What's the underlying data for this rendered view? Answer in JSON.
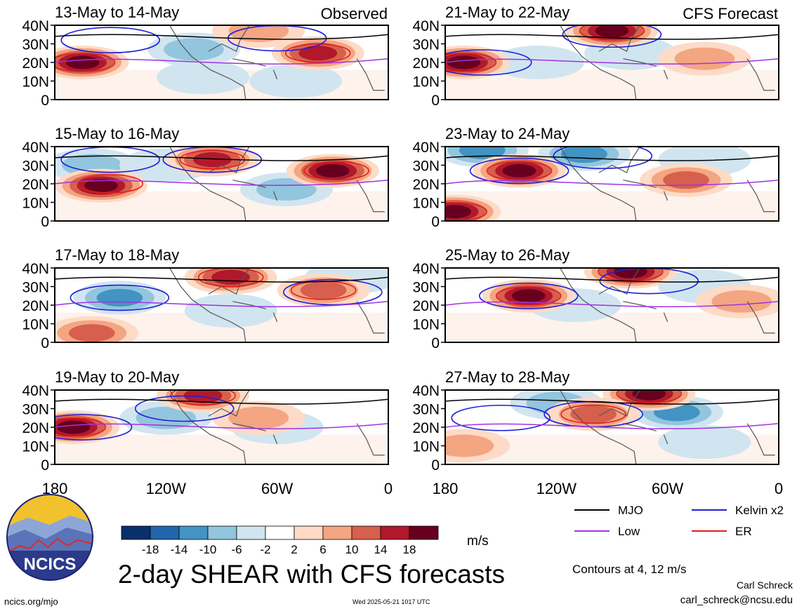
{
  "chart_data": {
    "type": "heatmap",
    "title": "2-day SHEAR with CFS forecasts",
    "units": "m/s",
    "y_ticks": [
      "40N",
      "30N",
      "20N",
      "10N",
      "0"
    ],
    "x_ticks": [
      "180",
      "120W",
      "60W",
      "0"
    ],
    "panels": [
      {
        "period": "13-May to 14-May",
        "tag": "Observed",
        "hot": [
          [
            165,
            20,
            18
          ],
          [
            38,
            25,
            14
          ],
          [
            70,
            37,
            8
          ]
        ],
        "cold": [
          [
            105,
            27,
            -6
          ],
          [
            100,
            12,
            -4
          ],
          [
            50,
            10,
            -4
          ]
        ],
        "red_contours": [
          [
            165,
            20
          ],
          [
            38,
            25
          ]
        ],
        "blue_contours": [
          [
            150,
            32
          ],
          [
            60,
            33
          ]
        ]
      },
      {
        "period": "15-May to 16-May",
        "tag": "",
        "hot": [
          [
            155,
            19,
            18
          ],
          [
            30,
            27,
            20
          ],
          [
            95,
            33,
            14
          ]
        ],
        "cold": [
          [
            160,
            30,
            -6
          ],
          [
            55,
            17,
            -8
          ],
          [
            120,
            30,
            -4
          ]
        ],
        "red_contours": [
          [
            150,
            20
          ],
          [
            28,
            27
          ],
          [
            95,
            33
          ]
        ],
        "blue_contours": [
          [
            95,
            33
          ],
          [
            150,
            33
          ]
        ]
      },
      {
        "period": "17-May to 18-May",
        "tag": "",
        "hot": [
          [
            85,
            35,
            14
          ],
          [
            35,
            28,
            10
          ],
          [
            160,
            5,
            12
          ]
        ],
        "cold": [
          [
            145,
            24,
            -10
          ],
          [
            20,
            35,
            -4
          ],
          [
            85,
            17,
            -4
          ]
        ],
        "red_contours": [
          [
            85,
            35
          ],
          [
            35,
            28
          ]
        ],
        "blue_contours": [
          [
            145,
            24
          ],
          [
            30,
            27
          ]
        ]
      },
      {
        "period": "19-May to 20-May",
        "tag": "",
        "hot": [
          [
            170,
            20,
            18
          ],
          [
            100,
            37,
            14
          ],
          [
            70,
            25,
            8
          ]
        ],
        "cold": [
          [
            120,
            25,
            -8
          ],
          [
            60,
            20,
            -4
          ]
        ],
        "red_contours": [
          [
            170,
            20
          ],
          [
            100,
            37
          ]
        ],
        "blue_contours": [
          [
            165,
            20
          ],
          [
            110,
            30
          ]
        ]
      },
      {
        "period": "21-May to 22-May",
        "tag": "CFS Forecast",
        "hot": [
          [
            170,
            20,
            18
          ],
          [
            90,
            37,
            18
          ],
          [
            40,
            22,
            6
          ]
        ],
        "cold": [
          [
            130,
            20,
            -4
          ],
          [
            80,
            25,
            -4
          ]
        ],
        "red_contours": [
          [
            170,
            20
          ],
          [
            90,
            37
          ]
        ],
        "blue_contours": [
          [
            160,
            20
          ],
          [
            90,
            35
          ]
        ]
      },
      {
        "period": "23-May to 24-May",
        "tag": "",
        "hot": [
          [
            140,
            27,
            18
          ],
          [
            175,
            5,
            18
          ],
          [
            50,
            22,
            10
          ]
        ],
        "cold": [
          [
            160,
            38,
            -10
          ],
          [
            105,
            36,
            -10
          ],
          [
            40,
            33,
            -4
          ]
        ],
        "red_contours": [
          [
            140,
            27
          ],
          [
            175,
            5
          ]
        ],
        "blue_contours": [
          [
            140,
            27
          ],
          [
            95,
            35
          ]
        ]
      },
      {
        "period": "25-May to 26-May",
        "tag": "",
        "hot": [
          [
            135,
            25,
            18
          ],
          [
            80,
            38,
            18
          ],
          [
            20,
            22,
            6
          ]
        ],
        "cold": [
          [
            110,
            20,
            -4
          ],
          [
            40,
            30,
            -4
          ]
        ],
        "red_contours": [
          [
            135,
            25
          ],
          [
            80,
            38
          ]
        ],
        "blue_contours": [
          [
            135,
            25
          ],
          [
            70,
            33
          ]
        ]
      },
      {
        "period": "27-May to 28-May",
        "tag": "",
        "hot": [
          [
            70,
            38,
            18
          ],
          [
            100,
            27,
            10
          ],
          [
            170,
            10,
            8
          ]
        ],
        "cold": [
          [
            55,
            28,
            -10
          ],
          [
            120,
            33,
            -6
          ],
          [
            40,
            12,
            -4
          ]
        ],
        "red_contours": [
          [
            70,
            38
          ],
          [
            100,
            27
          ]
        ],
        "blue_contours": [
          [
            100,
            27
          ],
          [
            150,
            25
          ]
        ]
      }
    ],
    "colorbar": {
      "levels": [
        "-18",
        "-14",
        "-10",
        "-6",
        "-2",
        "2",
        "6",
        "10",
        "14",
        "18"
      ],
      "colors": [
        "#08306b",
        "#2166ac",
        "#4393c3",
        "#92c5de",
        "#d1e5f0",
        "#ffffff",
        "#fddbc7",
        "#f4a582",
        "#d6604d",
        "#b2182b",
        "#67001f"
      ]
    },
    "legend": [
      {
        "label": "MJO",
        "color": "#000000"
      },
      {
        "label": "Kelvin x2",
        "color": "#1f1fd6"
      },
      {
        "label": "Low",
        "color": "#a033e0"
      },
      {
        "label": "ER",
        "color": "#e01e1e"
      }
    ]
  },
  "footer": {
    "logo_text": "NCICS",
    "contours_note": "Contours at 4, 12 m/s",
    "author": "Carl Schreck",
    "email": "carl_schreck@ncsu.edu",
    "site": "ncics.org/mjo",
    "timestamp": "Wed 2025-05-21 1017 UTC"
  }
}
